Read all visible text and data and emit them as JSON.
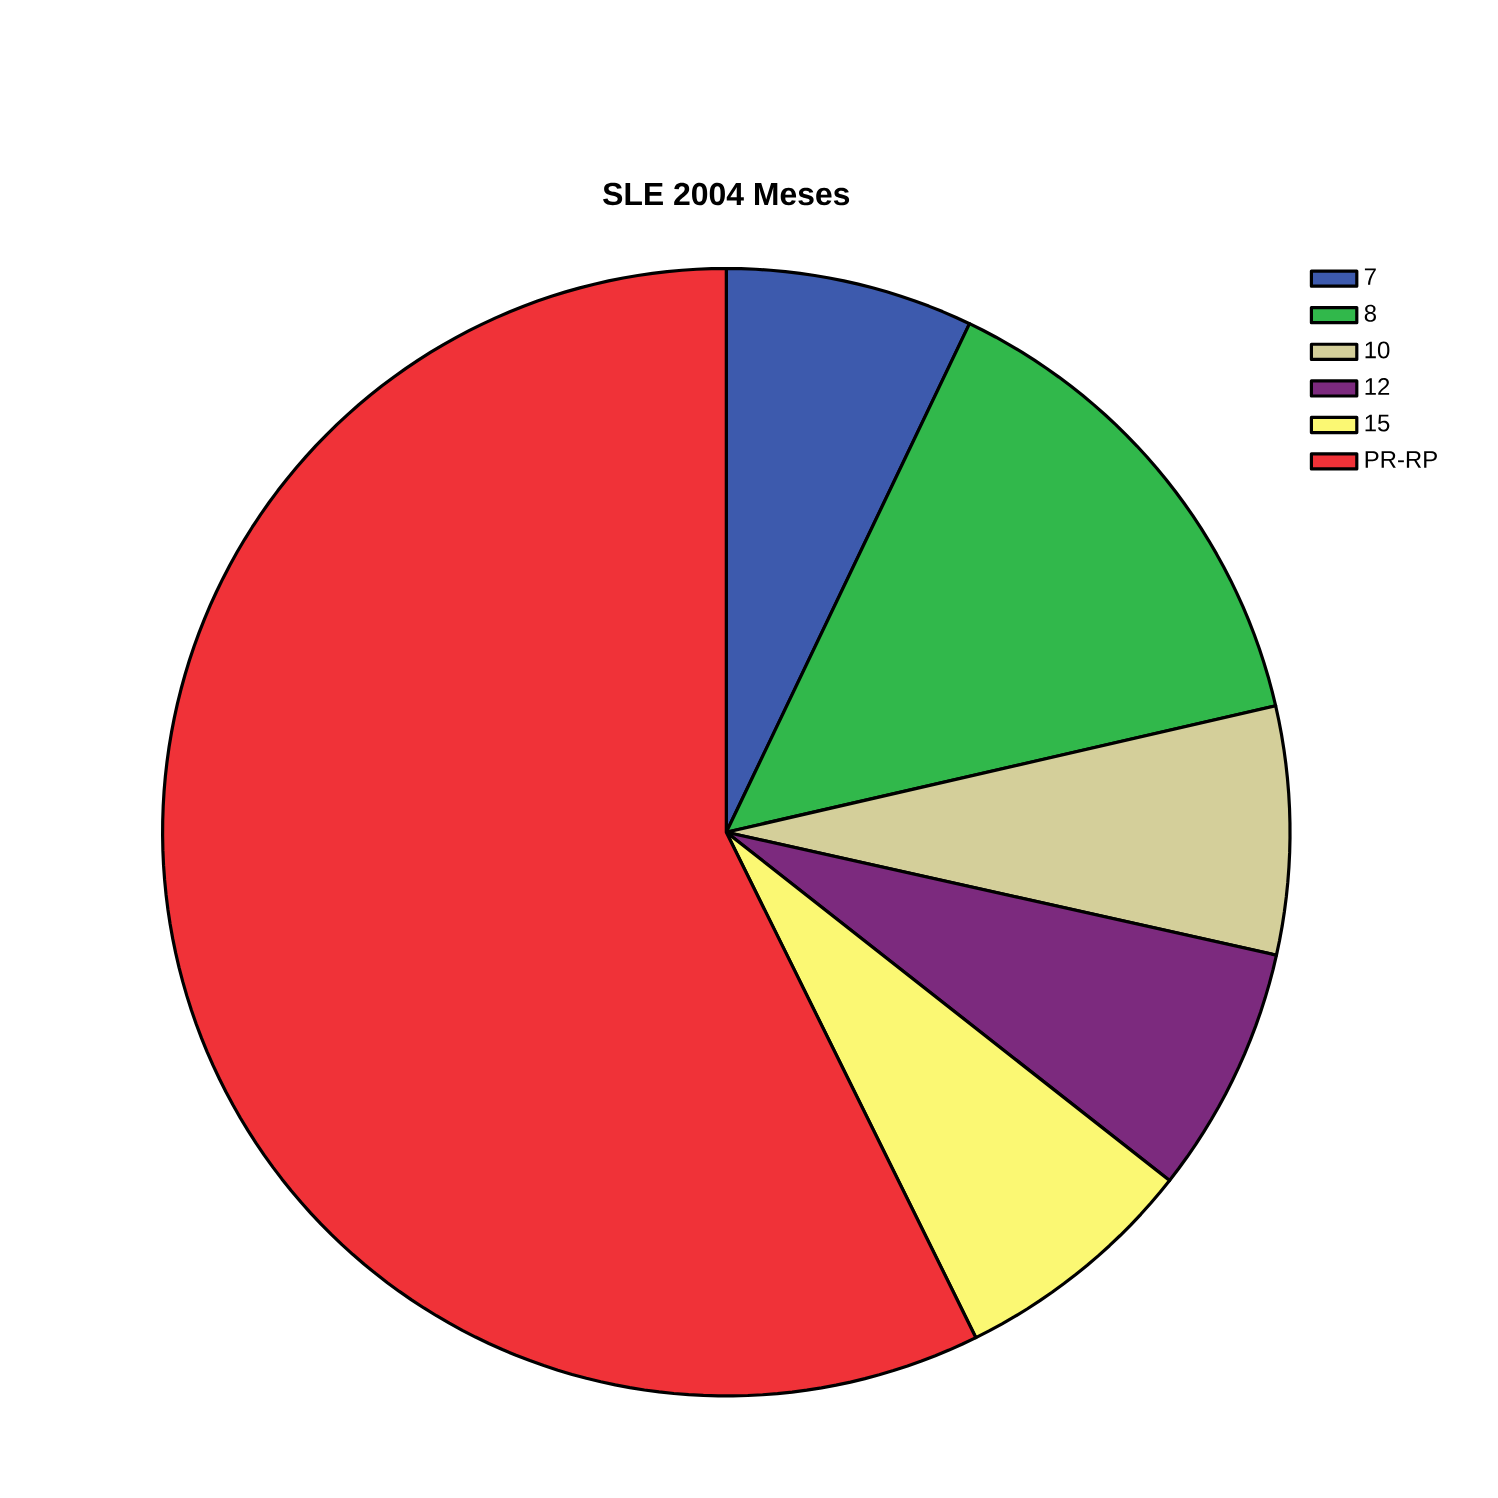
{
  "chart_data": {
    "type": "pie",
    "title": "SLE 2004 Meses",
    "categories": [
      "7",
      "8",
      "10",
      "12",
      "15",
      "PR-RP"
    ],
    "values": [
      7.1,
      14.3,
      7.1,
      7.1,
      7.1,
      57.3
    ],
    "colors": [
      "#3d5aad",
      "#31b84b",
      "#d4cf9a",
      "#7c2a7e",
      "#fbf873",
      "#f03238"
    ],
    "legend": "top right"
  }
}
